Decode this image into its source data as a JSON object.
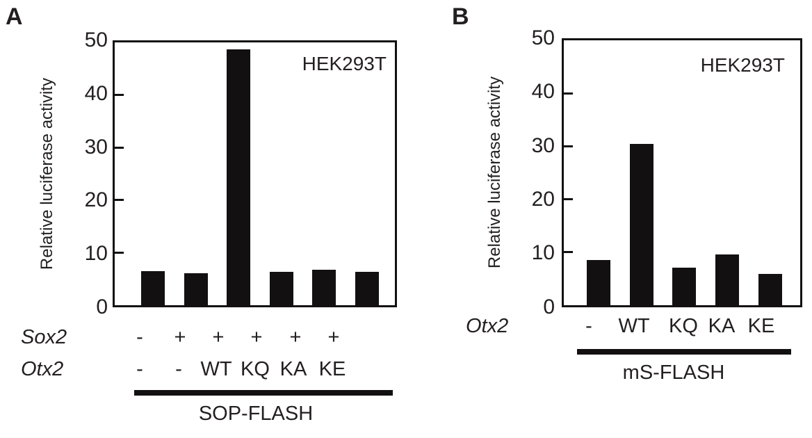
{
  "figure": {
    "y_axis_label": "Relative luciferase activity",
    "y_ticks": [
      "50",
      "40",
      "30",
      "20",
      "10",
      "0"
    ],
    "panels": [
      {
        "letter": "A",
        "cell_line": "HEK293T",
        "rows": [
          {
            "label": "Sox2",
            "values": [
              "-",
              "+",
              "+",
              "+",
              "+",
              "+"
            ]
          },
          {
            "label": "Otx2",
            "values": [
              "-",
              "-",
              "WT",
              "KQ",
              "KA",
              "KE"
            ]
          }
        ],
        "reporter": "SOP-FLASH"
      },
      {
        "letter": "B",
        "cell_line": "HEK293T",
        "rows": [
          {
            "label": "Otx2",
            "values": [
              "-",
              "WT",
              "KQ",
              "KA",
              "KE"
            ]
          }
        ],
        "reporter": "mS-FLASH"
      }
    ]
  },
  "chart_data": [
    {
      "type": "bar",
      "panel": "A",
      "title": "HEK293T",
      "ylabel": "Relative luciferase activity",
      "ylim": [
        0,
        50
      ],
      "yticks": [
        0,
        10,
        20,
        30,
        40,
        50
      ],
      "categories": [
        "Sox2 - / Otx2 -",
        "Sox2 + / Otx2 -",
        "Sox2 + / Otx2 WT",
        "Sox2 + / Otx2 KQ",
        "Sox2 + / Otx2 KA",
        "Sox2 + / Otx2 KE"
      ],
      "values": [
        6.5,
        6.1,
        48.7,
        6.4,
        6.8,
        6.4
      ],
      "reporter": "SOP-FLASH",
      "bar_color": "#131011",
      "legend": "none",
      "grid": false
    },
    {
      "type": "bar",
      "panel": "B",
      "title": "HEK293T",
      "ylabel": "Relative luciferase activity",
      "ylim": [
        0,
        50
      ],
      "yticks": [
        0,
        10,
        20,
        30,
        40,
        50
      ],
      "categories": [
        "Otx2 -",
        "Otx2 WT",
        "Otx2 KQ",
        "Otx2 KA",
        "Otx2 KE"
      ],
      "values": [
        8.5,
        30.5,
        7.1,
        9.6,
        5.9
      ],
      "reporter": "mS-FLASH",
      "bar_color": "#131011",
      "legend": "none",
      "grid": false
    }
  ]
}
